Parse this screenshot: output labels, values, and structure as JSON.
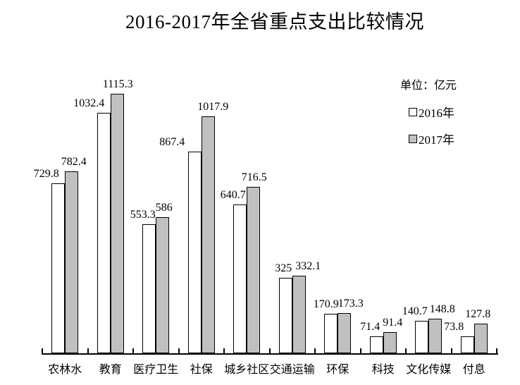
{
  "title": "2016-2017年全省重点支出比较情况",
  "legend": {
    "unit_label": "单位：亿元",
    "items": [
      {
        "label": "2016年",
        "fill": "#ffffff"
      },
      {
        "label": "2017年",
        "fill": "#c0c0c0"
      }
    ]
  },
  "chart_data": {
    "type": "bar",
    "title": "2016-2017年全省重点支出比较情况",
    "unit": "亿元",
    "categories": [
      "农林水",
      "教育",
      "医疗卫生",
      "社保",
      "城乡社区",
      "交通运输",
      "环保",
      "科技",
      "文化传媒",
      "付息"
    ],
    "series": [
      {
        "name": "2016年",
        "fill": "#ffffff",
        "values": [
          729.8,
          1032.4,
          553.3,
          867.4,
          640.7,
          325,
          170.9,
          71.4,
          140.7,
          73.8
        ],
        "labels": [
          "729.8",
          "1032.4",
          "553.3",
          "867.4",
          "640.7",
          "325",
          "170.9",
          "71.4",
          "140.7",
          "73.8"
        ]
      },
      {
        "name": "2017年",
        "fill": "#c0c0c0",
        "values": [
          782.4,
          1115.3,
          586,
          1017.9,
          716.5,
          332.1,
          173.3,
          91.4,
          148.8,
          127.8
        ],
        "labels": [
          "782.4",
          "1115.3",
          "586",
          "1017.9",
          "716.5",
          "332.1",
          "173.3",
          "91.4",
          "148.8",
          "127.8"
        ]
      }
    ],
    "ylim": [
      0,
      1200
    ],
    "grid": false,
    "y_axis_visible": false,
    "axis_color": "#000000",
    "bar_border_color": "#000000",
    "legend_position": "top-right",
    "value_labels": "outside-end"
  }
}
